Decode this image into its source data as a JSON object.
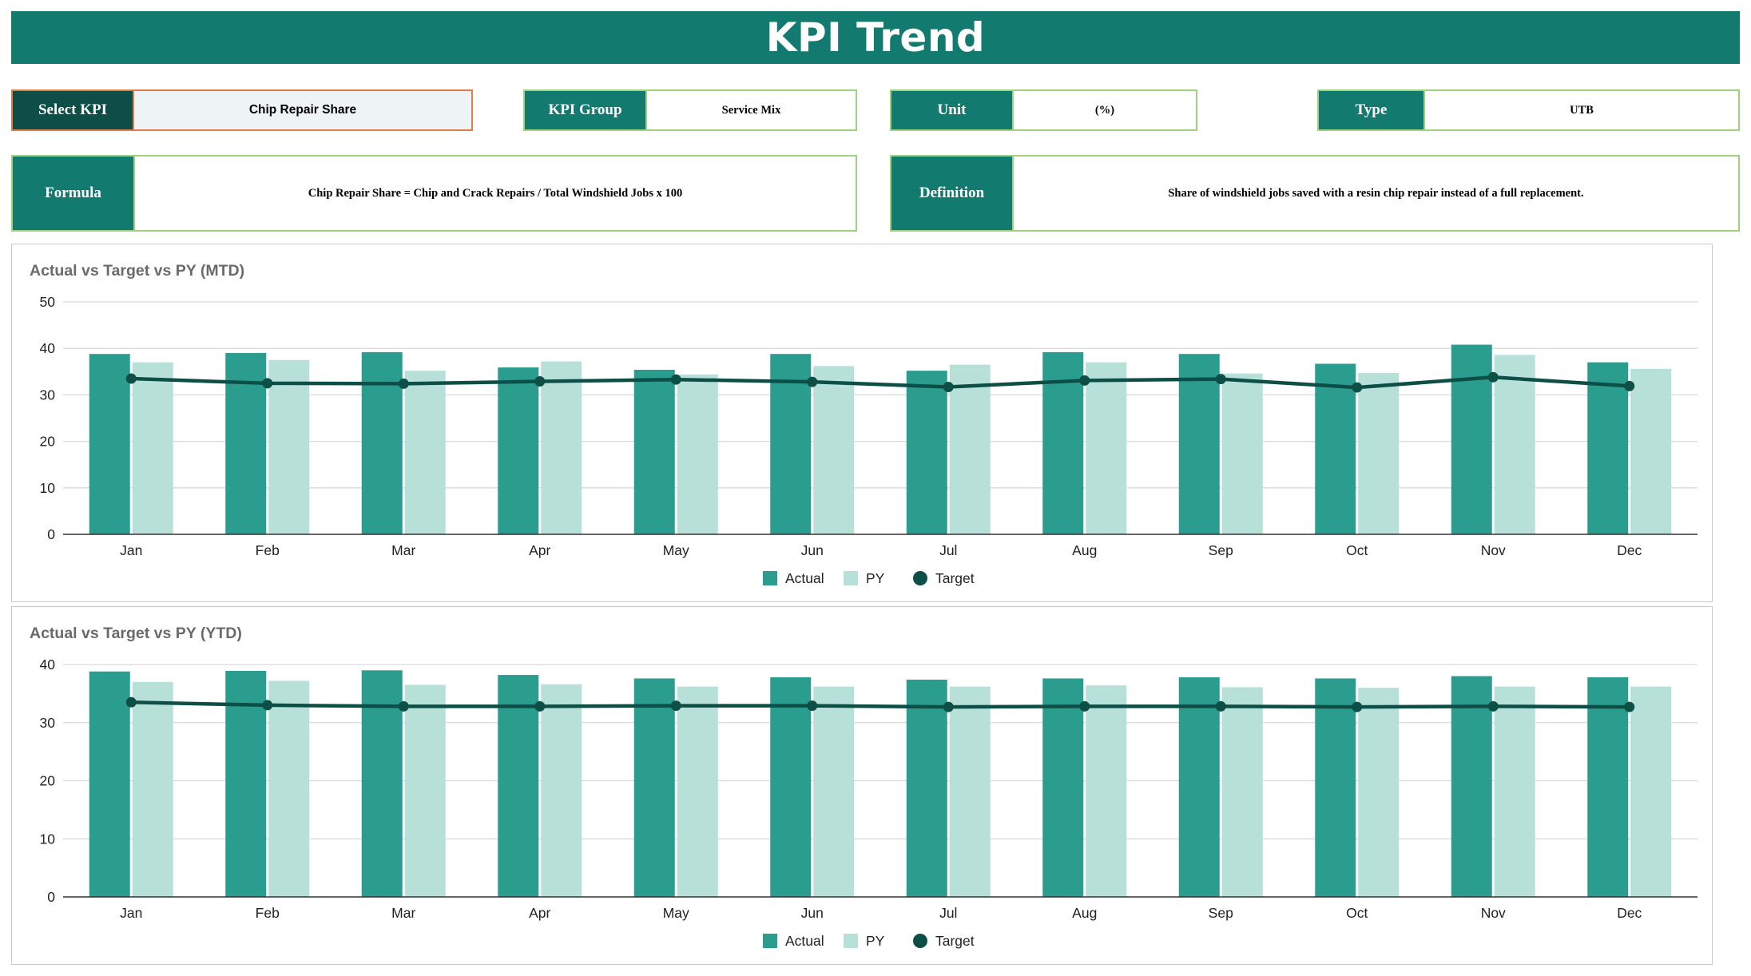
{
  "header": {
    "title": "KPI Trend"
  },
  "controls": {
    "select_kpi": {
      "label": "Select KPI",
      "value": "Chip Repair Share"
    },
    "kpi_group": {
      "label": "KPI Group",
      "value": "Service Mix"
    },
    "unit": {
      "label": "Unit",
      "value": "(%)"
    },
    "type": {
      "label": "Type",
      "value": "UTB"
    },
    "formula": {
      "label": "Formula",
      "value": "Chip Repair Share = Chip and Crack Repairs / Total Windshield Jobs x 100"
    },
    "definition": {
      "label": "Definition",
      "value": "Share of windshield jobs saved with a resin chip repair instead of a full replacement."
    }
  },
  "colors": {
    "banner": "#127a6f",
    "actual": "#2a9d8f",
    "py": "#b7e1d8",
    "target": "#0d4f47"
  },
  "chart_data": [
    {
      "type": "bar",
      "title": "Actual vs Target vs PY (MTD)",
      "categories": [
        "Jan",
        "Feb",
        "Mar",
        "Apr",
        "May",
        "Jun",
        "Jul",
        "Aug",
        "Sep",
        "Oct",
        "Nov",
        "Dec"
      ],
      "ylim": [
        0,
        50
      ],
      "yticks": [
        0,
        10,
        20,
        30,
        40,
        50
      ],
      "grid": true,
      "legend_position": "bottom",
      "series": [
        {
          "name": "Actual",
          "kind": "bar",
          "values": [
            38.8,
            39.0,
            39.2,
            35.9,
            35.4,
            38.8,
            35.2,
            39.2,
            38.8,
            36.7,
            40.8,
            37.0
          ]
        },
        {
          "name": "PY",
          "kind": "bar",
          "values": [
            37.0,
            37.5,
            35.2,
            37.2,
            34.4,
            36.2,
            36.5,
            37.0,
            34.6,
            34.7,
            38.6,
            35.6
          ]
        },
        {
          "name": "Target",
          "kind": "line",
          "values": [
            33.5,
            32.5,
            32.4,
            32.9,
            33.3,
            32.8,
            31.7,
            33.1,
            33.4,
            31.6,
            33.8,
            31.9
          ]
        }
      ]
    },
    {
      "type": "bar",
      "title": "Actual vs Target vs PY (YTD)",
      "categories": [
        "Jan",
        "Feb",
        "Mar",
        "Apr",
        "May",
        "Jun",
        "Jul",
        "Aug",
        "Sep",
        "Oct",
        "Nov",
        "Dec"
      ],
      "ylim": [
        0,
        40
      ],
      "yticks": [
        0,
        10,
        20,
        30,
        40
      ],
      "grid": true,
      "legend_position": "bottom",
      "series": [
        {
          "name": "Actual",
          "kind": "bar",
          "values": [
            38.8,
            38.9,
            39.0,
            38.2,
            37.6,
            37.8,
            37.4,
            37.6,
            37.8,
            37.6,
            38.0,
            37.8
          ]
        },
        {
          "name": "PY",
          "kind": "bar",
          "values": [
            37.0,
            37.2,
            36.5,
            36.6,
            36.2,
            36.2,
            36.2,
            36.4,
            36.1,
            36.0,
            36.2,
            36.2
          ]
        },
        {
          "name": "Target",
          "kind": "line",
          "values": [
            33.5,
            33.0,
            32.8,
            32.8,
            32.9,
            32.9,
            32.7,
            32.8,
            32.8,
            32.7,
            32.8,
            32.7
          ]
        }
      ]
    }
  ]
}
